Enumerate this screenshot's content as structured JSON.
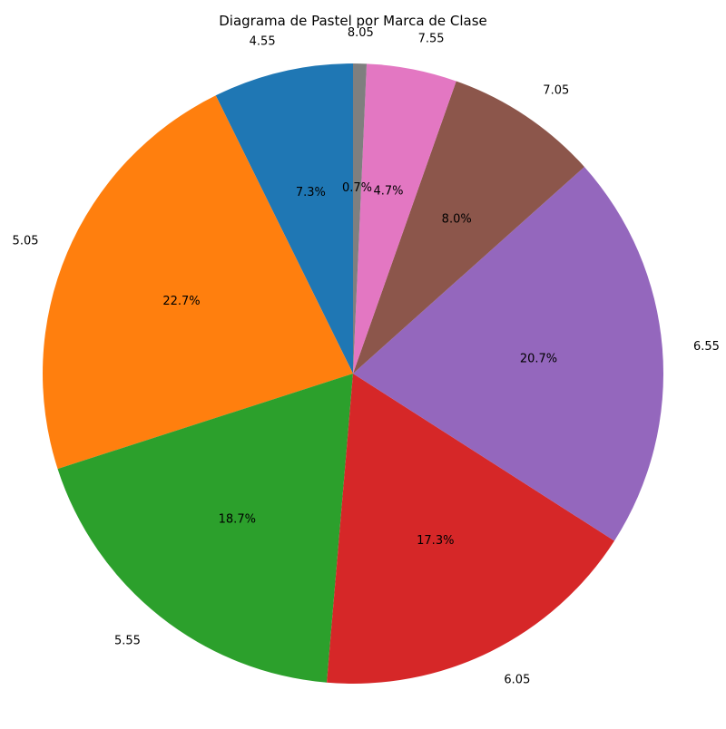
{
  "chart_data": {
    "type": "pie",
    "title": "Diagrama de Pastel por Marca de Clase",
    "categories": [
      "4.55",
      "5.05",
      "5.55",
      "6.05",
      "6.55",
      "7.05",
      "7.55",
      "8.05"
    ],
    "values": [
      7.3,
      22.7,
      18.7,
      17.3,
      20.7,
      8.0,
      4.7,
      0.7
    ],
    "percent_labels": [
      "7.3%",
      "22.7%",
      "18.7%",
      "17.3%",
      "20.7%",
      "8.0%",
      "4.7%",
      "0.7%"
    ],
    "start_angle_deg": 90,
    "direction": "counterclockwise",
    "colors": [
      "#1f77b4",
      "#ff7f0e",
      "#2ca02c",
      "#d62728",
      "#9467bd",
      "#8c564b",
      "#e377c2",
      "#7f7f7f"
    ]
  }
}
